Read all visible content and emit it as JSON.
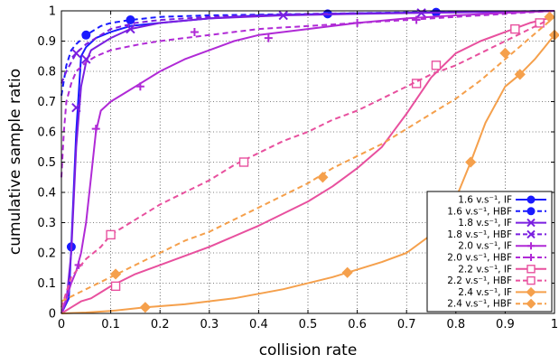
{
  "chart_data": {
    "type": "line",
    "title": "",
    "xlabel": "collision rate",
    "ylabel": "cumulative sample ratio",
    "xlim": [
      0,
      1
    ],
    "ylim": [
      0,
      1
    ],
    "grid": true,
    "legend_position": "bottom-right",
    "x_ticks": [
      0,
      0.1,
      0.2,
      0.3,
      0.4,
      0.5,
      0.6,
      0.7,
      0.8,
      0.9,
      1
    ],
    "x_tick_labels": [
      "0",
      "0.1",
      "0.2",
      "0.3",
      "0.4",
      "0.5",
      "0.6",
      "0.7",
      "0.8",
      "0.9",
      "1"
    ],
    "y_ticks": [
      0,
      0.1,
      0.2,
      0.3,
      0.4,
      0.5,
      0.6,
      0.7,
      0.8,
      0.9,
      1
    ],
    "y_tick_labels": [
      "0",
      "0.1",
      "0.2",
      "0.3",
      "0.4",
      "0.5",
      "0.6",
      "0.7",
      "0.8",
      "0.9",
      "1"
    ],
    "series": [
      {
        "name": "1.6 v.s⁻¹, IF",
        "color": "#1a1aff",
        "dash": "solid",
        "marker": "circle",
        "x": [
          0,
          0.015,
          0.02,
          0.03,
          0.04,
          0.05,
          0.07,
          0.1,
          0.14,
          0.2,
          0.3,
          0.4,
          0.54,
          0.6,
          0.76,
          0.9,
          1.0
        ],
        "y": [
          0,
          0.05,
          0.22,
          0.6,
          0.85,
          0.88,
          0.91,
          0.93,
          0.95,
          0.96,
          0.975,
          0.985,
          0.99,
          0.992,
          0.995,
          0.997,
          1.0
        ],
        "markers_x": [
          0.02,
          0.54,
          0.76
        ],
        "markers_y": [
          0.22,
          0.99,
          0.995
        ]
      },
      {
        "name": "1.6 v.s⁻¹, HBF",
        "color": "#1a1aff",
        "dash": "dashed",
        "marker": "circle",
        "x": [
          0,
          0.01,
          0.02,
          0.03,
          0.05,
          0.08,
          0.1,
          0.14,
          0.2,
          0.3,
          0.5,
          0.7,
          0.9,
          1.0
        ],
        "y": [
          0.72,
          0.82,
          0.87,
          0.89,
          0.92,
          0.95,
          0.96,
          0.97,
          0.98,
          0.985,
          0.99,
          0.995,
          0.998,
          1.0
        ],
        "markers_x": [
          0.05,
          0.14
        ],
        "markers_y": [
          0.92,
          0.97
        ]
      },
      {
        "name": "1.8 v.s⁻¹, IF",
        "color": "#7a1fe0",
        "dash": "solid",
        "marker": "x",
        "x": [
          0,
          0.01,
          0.02,
          0.03,
          0.04,
          0.05,
          0.06,
          0.08,
          0.1,
          0.14,
          0.2,
          0.3,
          0.45,
          0.6,
          0.73,
          0.9,
          1.0
        ],
        "y": [
          0,
          0.04,
          0.2,
          0.55,
          0.75,
          0.83,
          0.87,
          0.89,
          0.91,
          0.94,
          0.96,
          0.975,
          0.985,
          0.99,
          0.993,
          0.997,
          1.0
        ],
        "markers_x": [
          0.03,
          0.14,
          0.45,
          0.73
        ],
        "markers_y": [
          0.68,
          0.94,
          0.985,
          0.993
        ]
      },
      {
        "name": "1.8 v.s⁻¹, HBF",
        "color": "#7a1fe0",
        "dash": "dashed",
        "marker": "x",
        "x": [
          0,
          0.01,
          0.02,
          0.03,
          0.05,
          0.08,
          0.1,
          0.15,
          0.2,
          0.3,
          0.5,
          0.7,
          0.9,
          1.0
        ],
        "y": [
          0.76,
          0.8,
          0.83,
          0.86,
          0.89,
          0.92,
          0.94,
          0.96,
          0.97,
          0.98,
          0.99,
          0.993,
          0.997,
          1.0
        ],
        "markers_x": [
          0.03,
          0.05
        ],
        "markers_y": [
          0.86,
          0.84
        ]
      },
      {
        "name": "2.0 v.s⁻¹, IF",
        "color": "#b02ad6",
        "dash": "solid",
        "marker": "plus",
        "x": [
          0,
          0.01,
          0.02,
          0.03,
          0.04,
          0.05,
          0.06,
          0.07,
          0.08,
          0.1,
          0.13,
          0.15,
          0.2,
          0.25,
          0.3,
          0.35,
          0.4,
          0.5,
          0.6,
          0.7,
          0.8,
          0.9,
          1.0
        ],
        "y": [
          0,
          0.05,
          0.1,
          0.14,
          0.2,
          0.3,
          0.45,
          0.6,
          0.67,
          0.7,
          0.73,
          0.75,
          0.8,
          0.84,
          0.87,
          0.9,
          0.92,
          0.94,
          0.96,
          0.975,
          0.985,
          0.993,
          1.0
        ],
        "markers_x": [
          0.035,
          0.07,
          0.16,
          0.42,
          0.72
        ],
        "markers_y": [
          0.16,
          0.61,
          0.75,
          0.91,
          0.97
        ]
      },
      {
        "name": "2.0 v.s⁻¹, HBF",
        "color": "#b02ad6",
        "dash": "dashed",
        "marker": "plus",
        "x": [
          0,
          0.005,
          0.01,
          0.02,
          0.03,
          0.05,
          0.07,
          0.1,
          0.13,
          0.16,
          0.2,
          0.25,
          0.3,
          0.4,
          0.5,
          0.6,
          0.7,
          0.8,
          0.9,
          1.0
        ],
        "y": [
          0.45,
          0.6,
          0.7,
          0.76,
          0.8,
          0.83,
          0.85,
          0.87,
          0.88,
          0.89,
          0.9,
          0.91,
          0.92,
          0.94,
          0.95,
          0.96,
          0.97,
          0.98,
          0.99,
          1.0
        ],
        "markers_x": [
          0.27,
          0.6
        ],
        "markers_y": [
          0.93,
          0.96
        ]
      },
      {
        "name": "2.2 v.s⁻¹, IF",
        "color": "#e8509e",
        "dash": "solid",
        "marker": "square",
        "x": [
          0,
          0.02,
          0.04,
          0.06,
          0.08,
          0.1,
          0.15,
          0.2,
          0.3,
          0.4,
          0.5,
          0.55,
          0.6,
          0.65,
          0.7,
          0.75,
          0.8,
          0.85,
          0.9,
          0.95,
          1.0
        ],
        "y": [
          0,
          0.02,
          0.04,
          0.05,
          0.07,
          0.09,
          0.13,
          0.16,
          0.22,
          0.29,
          0.37,
          0.42,
          0.48,
          0.55,
          0.66,
          0.78,
          0.86,
          0.9,
          0.93,
          0.96,
          0.98
        ],
        "markers_x": [
          0.11,
          0.72,
          0.92,
          0.97
        ],
        "markers_y": [
          0.09,
          0.76,
          0.94,
          0.96
        ]
      },
      {
        "name": "2.2 v.s⁻¹, HBF",
        "color": "#e8509e",
        "dash": "dashed",
        "marker": "square",
        "x": [
          0,
          0.02,
          0.05,
          0.08,
          0.1,
          0.15,
          0.2,
          0.25,
          0.3,
          0.35,
          0.4,
          0.45,
          0.5,
          0.55,
          0.6,
          0.65,
          0.7,
          0.75,
          0.8,
          0.85,
          0.9,
          0.95,
          1.0
        ],
        "y": [
          0.02,
          0.12,
          0.18,
          0.22,
          0.26,
          0.31,
          0.36,
          0.4,
          0.44,
          0.49,
          0.53,
          0.57,
          0.6,
          0.64,
          0.67,
          0.71,
          0.75,
          0.79,
          0.82,
          0.86,
          0.9,
          0.94,
          0.98
        ],
        "markers_x": [
          0.1,
          0.37,
          0.76
        ],
        "markers_y": [
          0.26,
          0.5,
          0.82
        ]
      },
      {
        "name": "2.4 v.s⁻¹, IF",
        "color": "#f5a04c",
        "dash": "solid",
        "marker": "diamond",
        "x": [
          0,
          0.05,
          0.1,
          0.17,
          0.25,
          0.35,
          0.45,
          0.55,
          0.58,
          0.65,
          0.7,
          0.75,
          0.8,
          0.83,
          0.86,
          0.9,
          0.93,
          0.96,
          0.98,
          0.99,
          1.0
        ],
        "y": [
          0,
          0.003,
          0.008,
          0.02,
          0.03,
          0.05,
          0.08,
          0.12,
          0.135,
          0.17,
          0.2,
          0.26,
          0.38,
          0.5,
          0.63,
          0.75,
          0.79,
          0.84,
          0.88,
          0.9,
          0.92
        ],
        "markers_x": [
          0.17,
          0.58,
          0.83,
          0.93,
          1.0
        ],
        "markers_y": [
          0.02,
          0.135,
          0.5,
          0.79,
          0.92
        ]
      },
      {
        "name": "2.4 v.s⁻¹, HBF",
        "color": "#f5a04c",
        "dash": "dashed",
        "marker": "diamond",
        "x": [
          0,
          0.05,
          0.1,
          0.15,
          0.2,
          0.25,
          0.3,
          0.35,
          0.4,
          0.45,
          0.5,
          0.55,
          0.6,
          0.65,
          0.7,
          0.75,
          0.8,
          0.85,
          0.9,
          0.95,
          1.0
        ],
        "y": [
          0.04,
          0.08,
          0.12,
          0.16,
          0.2,
          0.24,
          0.27,
          0.31,
          0.35,
          0.39,
          0.43,
          0.48,
          0.52,
          0.56,
          0.61,
          0.66,
          0.71,
          0.77,
          0.84,
          0.91,
          0.98
        ],
        "markers_x": [
          0.11,
          0.53,
          0.9,
          0.99
        ],
        "markers_y": [
          0.13,
          0.45,
          0.86,
          0.98
        ]
      }
    ]
  }
}
